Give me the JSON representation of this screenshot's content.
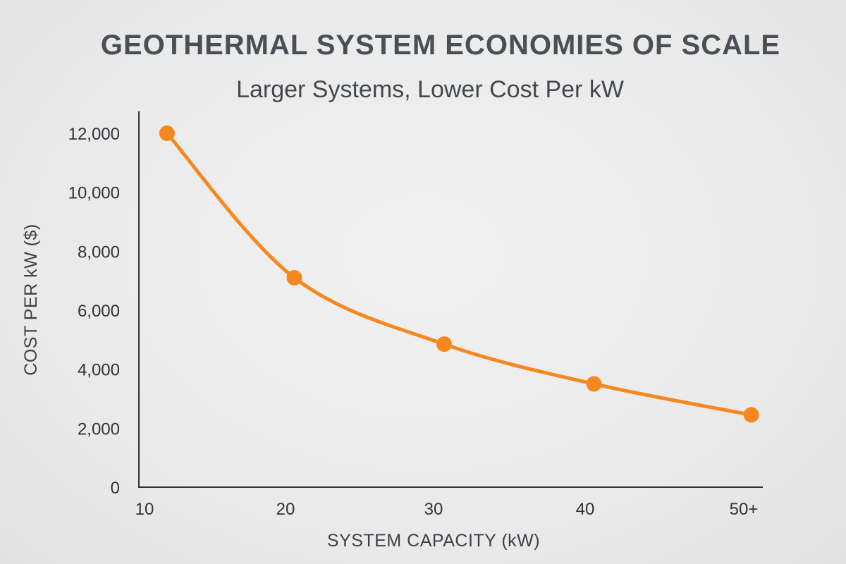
{
  "chart_data": {
    "type": "line",
    "title": "GEOTHERMAL SYSTEM ECONOMIES OF SCALE",
    "subtitle": "Larger Systems, Lower Cost Per kW",
    "xlabel": "SYSTEM CAPACITY (kW)",
    "ylabel": "COST PER kW ($)",
    "x_tick_labels": [
      "10",
      "20",
      "30",
      "40",
      "50+"
    ],
    "y_tick_labels": [
      "0",
      "2,000",
      "4,000",
      "6,000",
      "8,000",
      "10,000",
      "12,000"
    ],
    "y_ticks": [
      0,
      2000,
      4000,
      6000,
      8000,
      10000,
      12000
    ],
    "xlim": [
      10,
      50
    ],
    "ylim": [
      0,
      12000
    ],
    "grid": false,
    "series": [
      {
        "x": [
          11.5,
          20,
          30,
          40,
          50.5
        ],
        "values": [
          12000,
          7100,
          4850,
          3500,
          2450
        ]
      }
    ],
    "colors": {
      "line": "#f7871f",
      "axis": "#2f3337"
    }
  }
}
